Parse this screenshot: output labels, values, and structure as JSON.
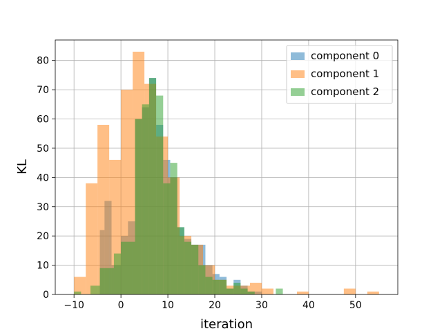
{
  "chart_data": {
    "type": "histogram",
    "title": "",
    "xlabel": "iteration",
    "ylabel": "KL",
    "xlim": [
      -14,
      59
    ],
    "ylim": [
      0,
      87
    ],
    "xticks": [
      -10,
      0,
      10,
      20,
      30,
      40,
      50
    ],
    "yticks": [
      0,
      10,
      20,
      30,
      40,
      50,
      60,
      70,
      80
    ],
    "grid": true,
    "legend_position": "top-right",
    "bar_opacity": 0.5,
    "series": [
      {
        "name": "component 0",
        "color": "#1f77b4",
        "bins": [
          {
            "x0": -4.5,
            "x1": -3.5,
            "count": 22
          },
          {
            "x0": -3.5,
            "x1": -2.0,
            "count": 32
          },
          {
            "x0": -2.0,
            "x1": 0.0,
            "count": 10
          },
          {
            "x0": 0.0,
            "x1": 1.5,
            "count": 20
          },
          {
            "x0": 1.5,
            "x1": 3.0,
            "count": 25
          },
          {
            "x0": 3.0,
            "x1": 4.5,
            "count": 60
          },
          {
            "x0": 4.5,
            "x1": 6.0,
            "count": 64
          },
          {
            "x0": 6.0,
            "x1": 7.5,
            "count": 74
          },
          {
            "x0": 7.5,
            "x1": 9.0,
            "count": 58
          },
          {
            "x0": 9.0,
            "x1": 10.5,
            "count": 46
          },
          {
            "x0": 10.5,
            "x1": 12.0,
            "count": 40
          },
          {
            "x0": 12.0,
            "x1": 13.5,
            "count": 23
          },
          {
            "x0": 13.5,
            "x1": 15.0,
            "count": 19
          },
          {
            "x0": 15.0,
            "x1": 16.5,
            "count": 17
          },
          {
            "x0": 16.5,
            "x1": 18.0,
            "count": 17
          },
          {
            "x0": 18.0,
            "x1": 19.5,
            "count": 10
          },
          {
            "x0": 19.5,
            "x1": 21.0,
            "count": 7
          },
          {
            "x0": 21.0,
            "x1": 22.5,
            "count": 6
          },
          {
            "x0": 22.5,
            "x1": 24.0,
            "count": 2
          },
          {
            "x0": 24.0,
            "x1": 25.5,
            "count": 5
          },
          {
            "x0": 25.5,
            "x1": 27.0,
            "count": 3
          },
          {
            "x0": 27.0,
            "x1": 30.0,
            "count": 1
          }
        ]
      },
      {
        "name": "component 1",
        "color": "#ff7f0e",
        "bins": [
          {
            "x0": -10.0,
            "x1": -7.5,
            "count": 6
          },
          {
            "x0": -7.5,
            "x1": -5.0,
            "count": 38
          },
          {
            "x0": -5.0,
            "x1": -2.5,
            "count": 58
          },
          {
            "x0": -2.5,
            "x1": 0.0,
            "count": 46
          },
          {
            "x0": 0.0,
            "x1": 2.5,
            "count": 70
          },
          {
            "x0": 2.5,
            "x1": 5.0,
            "count": 83
          },
          {
            "x0": 5.0,
            "x1": 7.5,
            "count": 72
          },
          {
            "x0": 7.5,
            "x1": 10.0,
            "count": 54
          },
          {
            "x0": 10.0,
            "x1": 12.5,
            "count": 40
          },
          {
            "x0": 12.5,
            "x1": 15.0,
            "count": 20
          },
          {
            "x0": 15.0,
            "x1": 17.5,
            "count": 17
          },
          {
            "x0": 17.5,
            "x1": 20.0,
            "count": 10
          },
          {
            "x0": 20.0,
            "x1": 22.5,
            "count": 5
          },
          {
            "x0": 22.5,
            "x1": 25.0,
            "count": 3
          },
          {
            "x0": 25.0,
            "x1": 27.5,
            "count": 3
          },
          {
            "x0": 27.5,
            "x1": 30.0,
            "count": 4
          },
          {
            "x0": 30.0,
            "x1": 32.5,
            "count": 2
          },
          {
            "x0": 37.5,
            "x1": 40.0,
            "count": 1
          },
          {
            "x0": 47.5,
            "x1": 50.0,
            "count": 2
          },
          {
            "x0": 52.5,
            "x1": 55.0,
            "count": 1
          }
        ]
      },
      {
        "name": "component 2",
        "color": "#2ca02c",
        "bins": [
          {
            "x0": -10.0,
            "x1": -8.5,
            "count": 1
          },
          {
            "x0": -6.5,
            "x1": -4.5,
            "count": 3
          },
          {
            "x0": -4.5,
            "x1": -1.5,
            "count": 9
          },
          {
            "x0": -1.5,
            "x1": 0.0,
            "count": 14
          },
          {
            "x0": 0.0,
            "x1": 3.0,
            "count": 18
          },
          {
            "x0": 3.0,
            "x1": 4.5,
            "count": 60
          },
          {
            "x0": 4.5,
            "x1": 6.0,
            "count": 65
          },
          {
            "x0": 6.0,
            "x1": 7.5,
            "count": 74
          },
          {
            "x0": 7.5,
            "x1": 9.0,
            "count": 68
          },
          {
            "x0": 9.0,
            "x1": 10.5,
            "count": 38
          },
          {
            "x0": 10.5,
            "x1": 12.0,
            "count": 45
          },
          {
            "x0": 12.0,
            "x1": 13.5,
            "count": 23
          },
          {
            "x0": 13.5,
            "x1": 15.0,
            "count": 18
          },
          {
            "x0": 15.0,
            "x1": 16.5,
            "count": 17
          },
          {
            "x0": 16.5,
            "x1": 18.0,
            "count": 10
          },
          {
            "x0": 18.0,
            "x1": 19.5,
            "count": 6
          },
          {
            "x0": 19.5,
            "x1": 21.0,
            "count": 5
          },
          {
            "x0": 21.0,
            "x1": 22.5,
            "count": 5
          },
          {
            "x0": 22.5,
            "x1": 24.0,
            "count": 2
          },
          {
            "x0": 24.0,
            "x1": 25.5,
            "count": 4
          },
          {
            "x0": 25.5,
            "x1": 27.0,
            "count": 2
          },
          {
            "x0": 27.0,
            "x1": 28.5,
            "count": 1
          },
          {
            "x0": 33.0,
            "x1": 34.5,
            "count": 2
          }
        ]
      }
    ]
  }
}
